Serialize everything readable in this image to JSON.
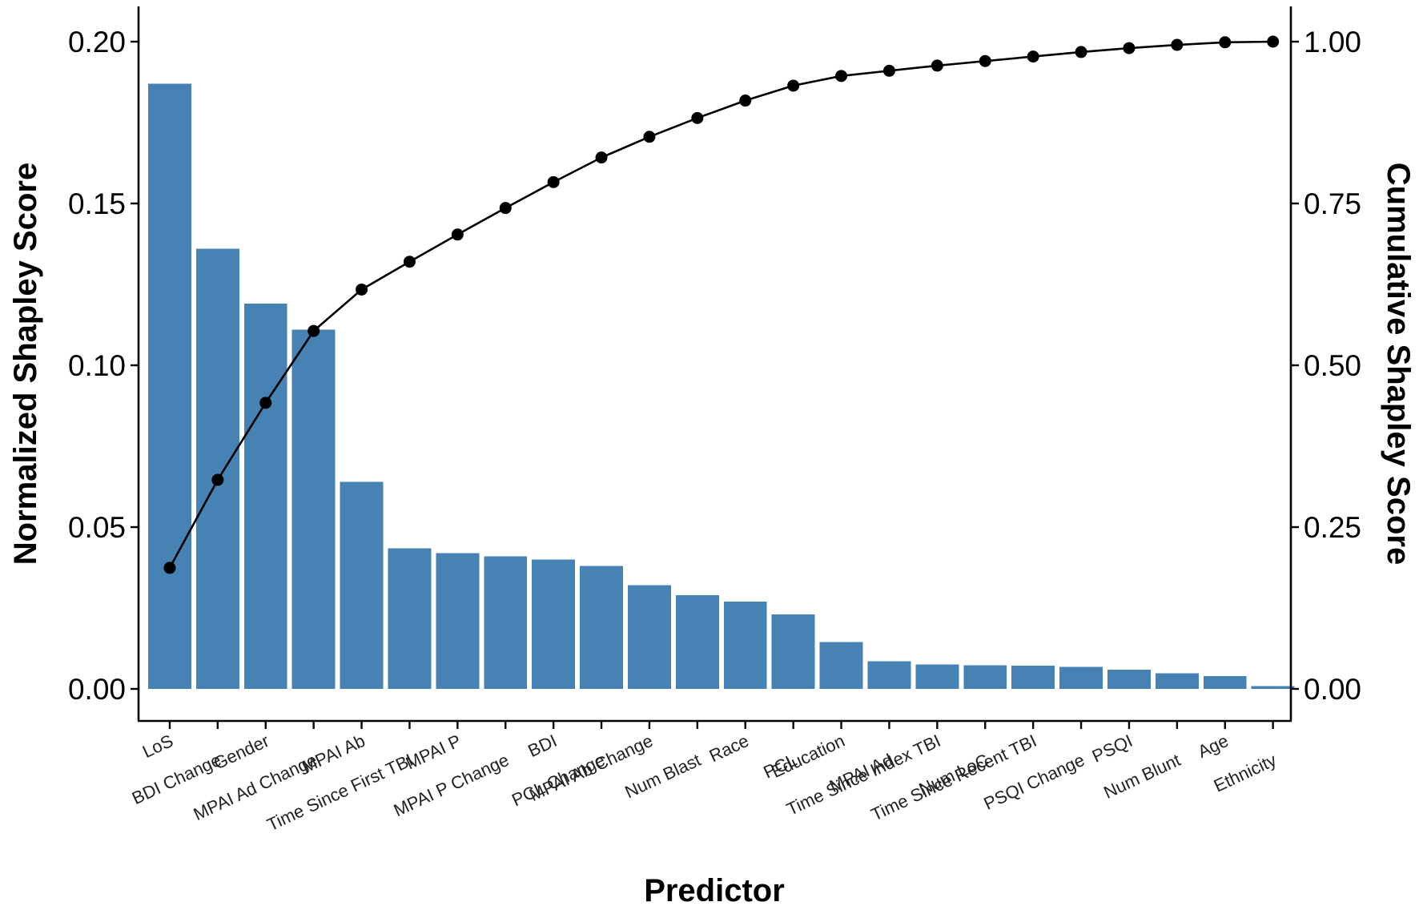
{
  "chart_data": {
    "type": "bar",
    "xlabel": "Predictor",
    "ylabel": "Normalized Shapley Score",
    "y2label": "Cumulative Shapley Score",
    "bar_color": "#4682B4",
    "line_color": "#000000",
    "ylim": [
      0,
      0.205
    ],
    "y2lim": [
      0,
      1.025
    ],
    "yticks": [
      "0.00",
      "0.05",
      "0.10",
      "0.15",
      "0.20"
    ],
    "y2ticks": [
      "0.00",
      "0.25",
      "0.50",
      "0.75",
      "1.00"
    ],
    "categories": [
      "LoS",
      "BDI Change",
      "Gender",
      "MPAI Ad Change",
      "MPAI Ab",
      "Time Since First TBI",
      "MPAI P",
      "MPAI P Change",
      "BDI",
      "PCL Change",
      "MPAI Ab Change",
      "Num Blast",
      "Race",
      "PCL",
      "Education",
      "MPAI Ad",
      "Time Since Index TBI",
      "Num LoC",
      "Time Since Recent TBI",
      "PSQI Change",
      "PSQI",
      "Num Blunt",
      "Age",
      "Ethnicity"
    ],
    "series": [
      {
        "type": "bar",
        "values": [
          0.187,
          0.136,
          0.119,
          0.111,
          0.064,
          0.0435,
          0.042,
          0.041,
          0.04,
          0.038,
          0.032,
          0.029,
          0.027,
          0.023,
          0.0145,
          0.0085,
          0.0075,
          0.0073,
          0.0072,
          0.0068,
          0.006,
          0.0048,
          0.0039,
          0.0009
        ]
      },
      {
        "type": "line",
        "axis": "right",
        "values": [
          0.187,
          0.323,
          0.442,
          0.553,
          0.617,
          0.66,
          0.702,
          0.743,
          0.783,
          0.821,
          0.853,
          0.882,
          0.909,
          0.932,
          0.947,
          0.955,
          0.963,
          0.97,
          0.977,
          0.984,
          0.99,
          0.995,
          0.999,
          1.0
        ]
      }
    ],
    "grid": false
  }
}
